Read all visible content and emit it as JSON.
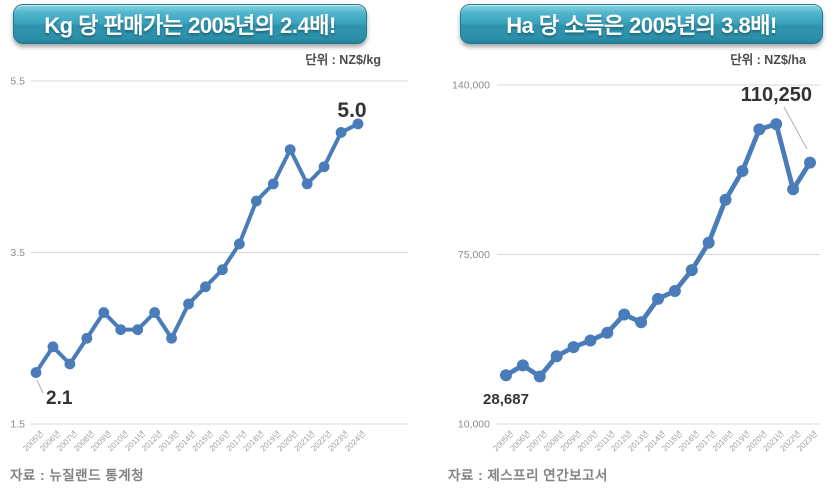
{
  "page": {
    "background": "#ffffff"
  },
  "colors": {
    "line": "#4a7cba",
    "grid": "#d9d9d9",
    "tick_text": "#8c8c8c",
    "xtick_text": "#9e9e9e",
    "annotation_text": "#333333",
    "callout": "#b0b0b0",
    "unit_text": "#4a4a4a",
    "source_text": "#828282",
    "header_text": "#ffffff",
    "header_top": "#8ad4e2",
    "header_bottom": "#2d90aa"
  },
  "chart_data": [
    {
      "type": "line",
      "title": "Kg 당 판매가는 2005년의 2.4배!",
      "unit_label": "단위 : NZ$/kg",
      "source": "자료 : 뉴질랜드 통계청",
      "categories": [
        "2005년",
        "2006년",
        "2007년",
        "2008년",
        "2009년",
        "2010년",
        "2011년",
        "2012년",
        "2013년",
        "2014년",
        "2015년",
        "2016년",
        "2017년",
        "2018년",
        "2019년",
        "2020년",
        "2021년",
        "2022년",
        "2023년",
        "2024년"
      ],
      "values": [
        2.1,
        2.4,
        2.2,
        2.5,
        2.8,
        2.6,
        2.6,
        2.8,
        2.5,
        2.9,
        3.1,
        3.3,
        3.6,
        4.1,
        4.3,
        4.7,
        4.3,
        4.5,
        4.9,
        5.0
      ],
      "ylim": [
        1.5,
        5.5
      ],
      "yticks": [
        {
          "value": 5.5,
          "label": "5.5"
        },
        {
          "value": 3.5,
          "label": "3.5"
        },
        {
          "value": 1.5,
          "label": "1.5"
        }
      ],
      "grid": true,
      "legend": false,
      "annotations": {
        "first": "2.1",
        "last": "5.0"
      }
    },
    {
      "type": "line",
      "title": "Ha 당 소득은 2005년의 3.8배!",
      "unit_label": "단위 : NZ$/ha",
      "source": "자료 : 제스프리 연간보고서",
      "categories": [
        "2005년",
        "2006년",
        "2007년",
        "2008년",
        "2009년",
        "2010년",
        "2011년",
        "2012년",
        "2013년",
        "2014년",
        "2015년",
        "2016년",
        "2017년",
        "2018년",
        "2019년",
        "2020년",
        "2021년",
        "2022년",
        "2023년"
      ],
      "values": [
        28687,
        32500,
        28200,
        36000,
        39500,
        42000,
        45000,
        52000,
        49000,
        58000,
        61000,
        69000,
        79500,
        96000,
        107000,
        123000,
        125000,
        100000,
        110250
      ],
      "ylim": [
        10000,
        140000
      ],
      "yticks": [
        {
          "value": 140000,
          "label": "140,000"
        },
        {
          "value": 75000,
          "label": "75,000"
        },
        {
          "value": 10000,
          "label": "10,000"
        }
      ],
      "grid": true,
      "legend": false,
      "annotations": {
        "first": "28,687",
        "last": "110,250"
      }
    }
  ]
}
